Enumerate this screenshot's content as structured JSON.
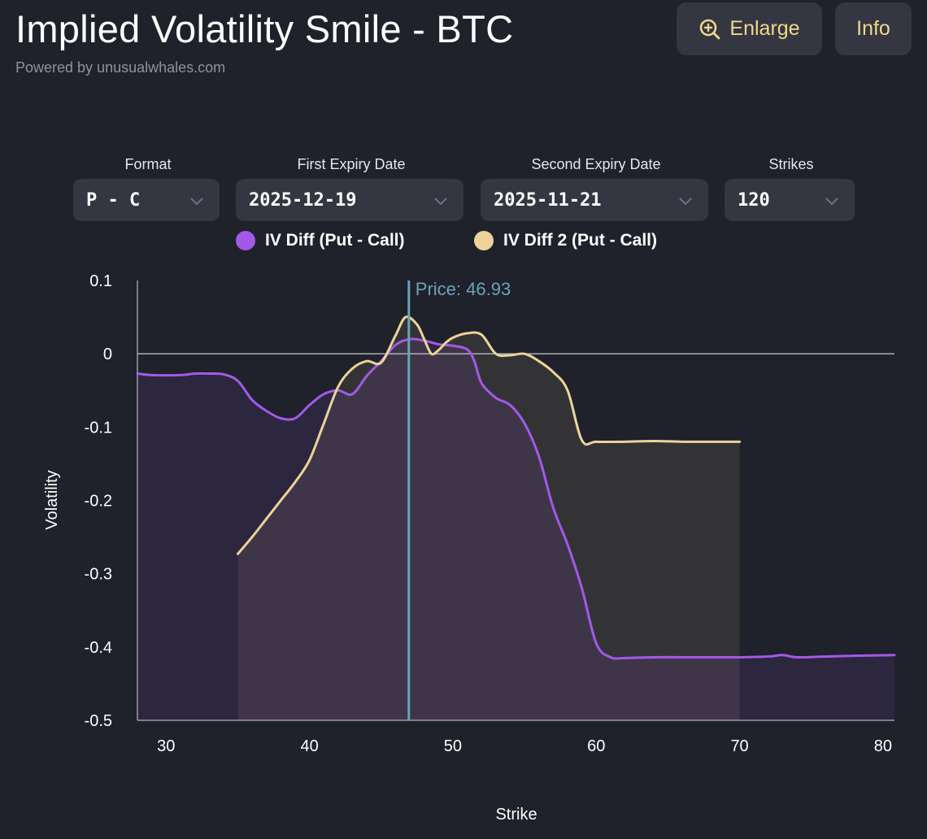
{
  "header": {
    "title": "Implied Volatility Smile - BTC",
    "subtitle": "Powered by unusualwhales.com",
    "enlarge_label": "Enlarge",
    "info_label": "Info"
  },
  "controls": {
    "format": {
      "label": "Format",
      "value": "P - C"
    },
    "first_expiry": {
      "label": "First Expiry Date",
      "value": "2025-12-19"
    },
    "second_expiry": {
      "label": "Second Expiry Date",
      "value": "2025-11-21"
    },
    "strikes": {
      "label": "Strikes",
      "value": "120"
    }
  },
  "colors": {
    "series1": "#a259e8",
    "series2": "#ecd39a",
    "price_line": "#6aa4b8",
    "accent": "#f0d889"
  },
  "chart_data": {
    "type": "line",
    "xlabel": "Strike",
    "ylabel": "Volatility",
    "xlim": [
      28,
      80.8
    ],
    "ylim": [
      -0.5,
      0.1
    ],
    "xticks": [
      30,
      40,
      50,
      60,
      70,
      80
    ],
    "yticks": [
      0.1,
      0,
      -0.1,
      -0.2,
      -0.3,
      -0.4,
      -0.5
    ],
    "price_label": "Price: 46.93",
    "price_value": 46.93,
    "series": [
      {
        "name": "IV Diff (Put - Call)",
        "x": [
          28,
          29,
          31,
          32,
          33,
          34,
          35,
          36,
          37,
          38,
          39,
          40,
          41,
          42,
          43,
          44,
          45,
          46,
          47,
          48,
          49,
          50,
          51,
          51.5,
          52,
          53,
          54,
          55,
          56,
          57,
          58,
          59,
          60,
          61,
          62,
          64,
          66,
          68,
          70,
          72,
          73,
          74,
          76,
          78,
          80.8
        ],
        "values": [
          -0.027,
          -0.029,
          -0.029,
          -0.027,
          -0.027,
          -0.028,
          -0.037,
          -0.063,
          -0.078,
          -0.088,
          -0.088,
          -0.07,
          -0.055,
          -0.05,
          -0.055,
          -0.03,
          -0.01,
          0.012,
          0.02,
          0.018,
          0.013,
          0.011,
          0.006,
          -0.01,
          -0.04,
          -0.06,
          -0.07,
          -0.095,
          -0.14,
          -0.21,
          -0.26,
          -0.32,
          -0.395,
          -0.414,
          -0.415,
          -0.414,
          -0.414,
          -0.414,
          -0.414,
          -0.413,
          -0.411,
          -0.414,
          -0.413,
          -0.412,
          -0.411
        ]
      },
      {
        "name": "IV Diff 2 (Put - Call)",
        "x": [
          35,
          36,
          37,
          38,
          39,
          40,
          41,
          42,
          43,
          44,
          45,
          46,
          46.7,
          47.5,
          48,
          48.5,
          49,
          49.5,
          50,
          51,
          52,
          53,
          54,
          55,
          56,
          57,
          58,
          59,
          60,
          62,
          64,
          66,
          68,
          70
        ],
        "values": [
          -0.273,
          -0.25,
          -0.225,
          -0.2,
          -0.175,
          -0.145,
          -0.095,
          -0.045,
          -0.02,
          -0.01,
          -0.012,
          0.025,
          0.05,
          0.04,
          0.02,
          0.0,
          0.005,
          0.015,
          0.022,
          0.028,
          0.026,
          0.0,
          -0.002,
          0.0,
          -0.01,
          -0.025,
          -0.05,
          -0.118,
          -0.12,
          -0.12,
          -0.119,
          -0.12,
          -0.12,
          -0.12
        ]
      }
    ]
  }
}
